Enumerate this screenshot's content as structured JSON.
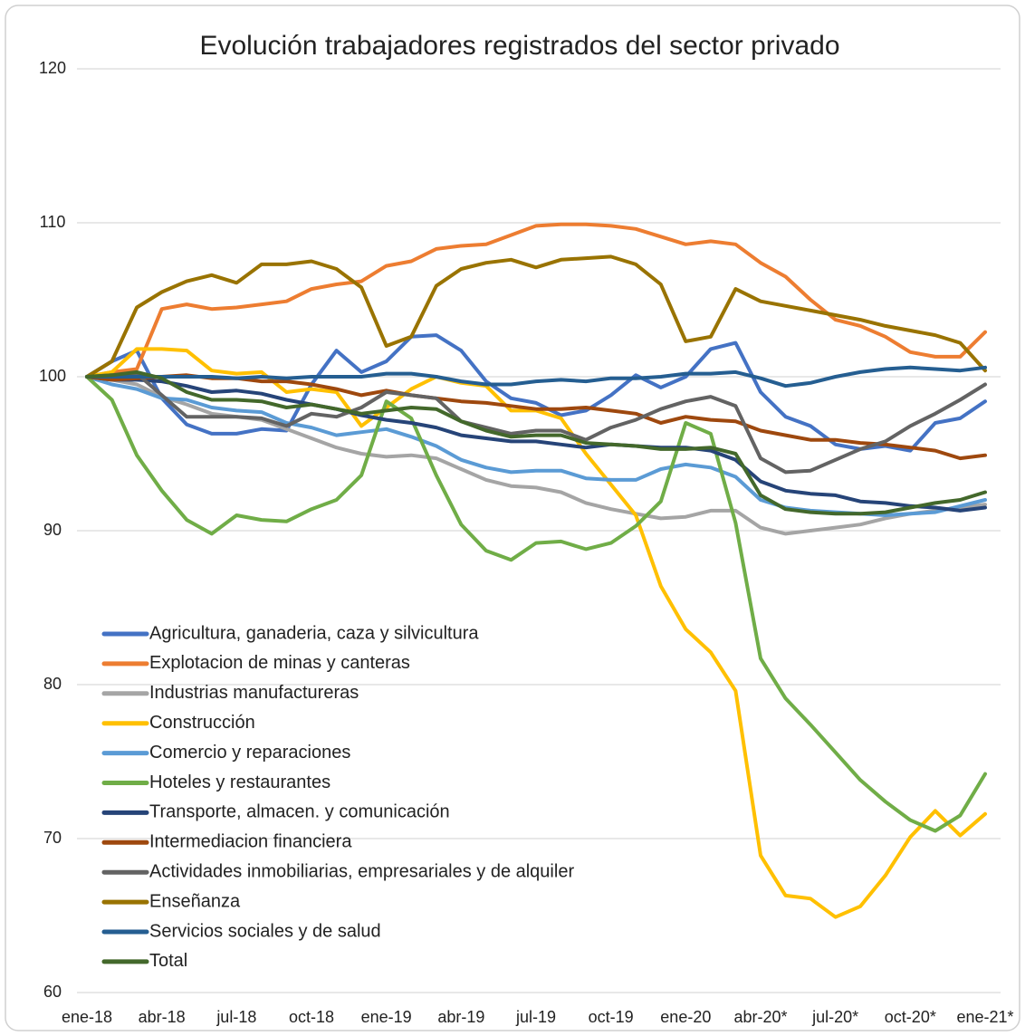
{
  "chart_data": {
    "type": "line",
    "title": "Evolución trabajadores registrados del sector privado",
    "categories": [
      "ene-18",
      null,
      null,
      "abr-18",
      null,
      null,
      "jul-18",
      null,
      null,
      "oct-18",
      null,
      null,
      "ene-19",
      null,
      null,
      "abr-19",
      null,
      null,
      "jul-19",
      null,
      null,
      "oct-19",
      null,
      null,
      "ene-20",
      null,
      null,
      "abr-20*",
      null,
      null,
      "jul-20*",
      null,
      null,
      "oct-20*",
      null,
      null,
      "ene-21*"
    ],
    "ylim": [
      60,
      120
    ],
    "yticks": [
      60,
      70,
      80,
      90,
      100,
      110,
      120
    ],
    "grid": true,
    "legend": "lower left",
    "series": [
      {
        "name": "Agricultura, ganaderia, caza y silvicultura",
        "color": "#4472c4",
        "values": [
          100,
          101,
          101.7,
          98.6,
          96.9,
          96.3,
          96.3,
          96.6,
          96.5,
          99.5,
          101.7,
          100.3,
          101,
          102.6,
          102.7,
          101.7,
          99.7,
          98.6,
          98.3,
          97.5,
          97.8,
          98.8,
          100.1,
          99.3,
          100,
          101.8,
          102.2,
          99,
          97.4,
          96.8,
          95.6,
          95.3,
          95.5,
          95.2,
          97,
          97.3,
          98.4
        ]
      },
      {
        "name": "Explotacion de minas y canteras",
        "color": "#ed7d31",
        "values": [
          100,
          100.3,
          100.5,
          104.4,
          104.7,
          104.4,
          104.5,
          104.7,
          104.9,
          105.7,
          106,
          106.2,
          107.2,
          107.5,
          108.3,
          108.5,
          108.6,
          109.2,
          109.8,
          109.9,
          109.9,
          109.8,
          109.6,
          109.1,
          108.6,
          108.8,
          108.6,
          107.4,
          106.5,
          105,
          103.7,
          103.3,
          102.6,
          101.6,
          101.3,
          101.3,
          102.9
        ]
      },
      {
        "name": "Industrias manufactureras",
        "color": "#a5a5a5",
        "values": [
          100,
          99.8,
          99.5,
          98.7,
          98.2,
          97.6,
          97.4,
          97.2,
          96.6,
          96,
          95.4,
          95,
          94.8,
          94.9,
          94.7,
          94,
          93.3,
          92.9,
          92.8,
          92.5,
          91.8,
          91.4,
          91.1,
          90.8,
          90.9,
          91.3,
          91.3,
          90.2,
          89.8,
          90,
          90.2,
          90.4,
          90.8,
          91.1,
          91.3,
          91.5,
          91.7
        ]
      },
      {
        "name": "Construcción",
        "color": "#ffc000",
        "values": [
          100,
          100.3,
          101.8,
          101.8,
          101.7,
          100.4,
          100.2,
          100.3,
          99,
          99.2,
          99,
          96.8,
          98,
          99.2,
          100,
          99.6,
          99.4,
          97.8,
          97.8,
          97.3,
          95,
          93,
          91,
          86.4,
          83.6,
          82.1,
          79.6,
          68.9,
          66.3,
          66.1,
          64.9,
          65.6,
          67.6,
          70.1,
          71.8,
          70.2,
          71.6
        ]
      },
      {
        "name": "Comercio y reparaciones",
        "color": "#5b9bd5",
        "values": [
          100,
          99.5,
          99.2,
          98.6,
          98.5,
          98,
          97.8,
          97.7,
          97,
          96.7,
          96.2,
          96.4,
          96.6,
          96.1,
          95.5,
          94.6,
          94.1,
          93.8,
          93.9,
          93.9,
          93.4,
          93.3,
          93.3,
          94,
          94.3,
          94.1,
          93.5,
          92,
          91.5,
          91.3,
          91.2,
          91.1,
          91,
          91.1,
          91.2,
          91.6,
          92
        ]
      },
      {
        "name": "Hoteles y restaurantes",
        "color": "#70ad47",
        "values": [
          100,
          98.5,
          94.9,
          92.6,
          90.7,
          89.8,
          91,
          90.7,
          90.6,
          91.4,
          92,
          93.6,
          98.4,
          97.3,
          93.6,
          90.4,
          88.7,
          88.1,
          89.2,
          89.3,
          88.8,
          89.2,
          90.3,
          91.9,
          97,
          96.3,
          90.5,
          81.7,
          79.1,
          77.4,
          75.6,
          73.8,
          72.4,
          71.2,
          70.5,
          71.5,
          74.2
        ]
      },
      {
        "name": "Transporte, almacen. y comunicación",
        "color": "#264478",
        "values": [
          100,
          99.8,
          99.8,
          99.7,
          99.4,
          99,
          99.1,
          98.9,
          98.5,
          98.2,
          97.9,
          97.5,
          97.2,
          97,
          96.7,
          96.2,
          96,
          95.8,
          95.8,
          95.6,
          95.4,
          95.6,
          95.5,
          95.4,
          95.4,
          95.2,
          94.6,
          93.2,
          92.6,
          92.4,
          92.3,
          91.9,
          91.8,
          91.6,
          91.5,
          91.3,
          91.5
        ]
      },
      {
        "name": "Intermediacion financiera",
        "color": "#9e480e",
        "values": [
          100,
          99.8,
          99.9,
          100,
          100.1,
          99.9,
          99.9,
          99.7,
          99.7,
          99.5,
          99.2,
          98.8,
          99.1,
          98.8,
          98.6,
          98.4,
          98.3,
          98.1,
          97.9,
          97.9,
          98,
          97.8,
          97.6,
          97,
          97.4,
          97.2,
          97.1,
          96.5,
          96.2,
          95.9,
          95.9,
          95.7,
          95.6,
          95.4,
          95.2,
          94.7,
          94.9
        ]
      },
      {
        "name": "Actividades inmobiliarias, empresariales y de alquiler",
        "color": "#636363",
        "values": [
          100,
          100.1,
          100.2,
          98.8,
          97.4,
          97.4,
          97.4,
          97.3,
          96.8,
          97.6,
          97.4,
          98,
          99,
          98.8,
          98.6,
          97.1,
          96.7,
          96.3,
          96.5,
          96.5,
          95.9,
          96.7,
          97.2,
          97.9,
          98.4,
          98.7,
          98.1,
          94.7,
          93.8,
          93.9,
          94.6,
          95.3,
          95.8,
          96.8,
          97.6,
          98.5,
          99.5
        ]
      },
      {
        "name": "Enseñanza",
        "color": "#997300",
        "values": [
          100,
          101,
          104.5,
          105.5,
          106.2,
          106.6,
          106.1,
          107.3,
          107.3,
          107.5,
          107,
          105.8,
          102,
          102.6,
          105.9,
          107,
          107.4,
          107.6,
          107.1,
          107.6,
          107.7,
          107.8,
          107.3,
          106,
          102.3,
          102.6,
          105.7,
          104.9,
          104.6,
          104.3,
          104,
          103.7,
          103.3,
          103,
          102.7,
          102.2,
          100.4
        ]
      },
      {
        "name": "Servicios sociales y de salud",
        "color": "#255e91",
        "values": [
          100,
          100,
          100,
          100,
          100,
          100,
          99.9,
          100,
          99.9,
          100,
          100,
          100,
          100.2,
          100.2,
          100,
          99.7,
          99.5,
          99.5,
          99.7,
          99.8,
          99.7,
          99.9,
          99.9,
          100,
          100.2,
          100.2,
          100.3,
          99.9,
          99.4,
          99.6,
          100,
          100.3,
          100.5,
          100.6,
          100.5,
          100.4,
          100.6
        ]
      },
      {
        "name": "Total",
        "color": "#43682b",
        "values": [
          100,
          100.1,
          100.3,
          99.9,
          99,
          98.5,
          98.5,
          98.4,
          98,
          98.2,
          97.9,
          97.6,
          97.8,
          98,
          97.9,
          97.1,
          96.5,
          96.1,
          96.2,
          96.2,
          95.7,
          95.6,
          95.5,
          95.3,
          95.3,
          95.4,
          95,
          92.3,
          91.4,
          91.2,
          91.1,
          91.1,
          91.2,
          91.5,
          91.8,
          92,
          92.5
        ]
      }
    ]
  }
}
